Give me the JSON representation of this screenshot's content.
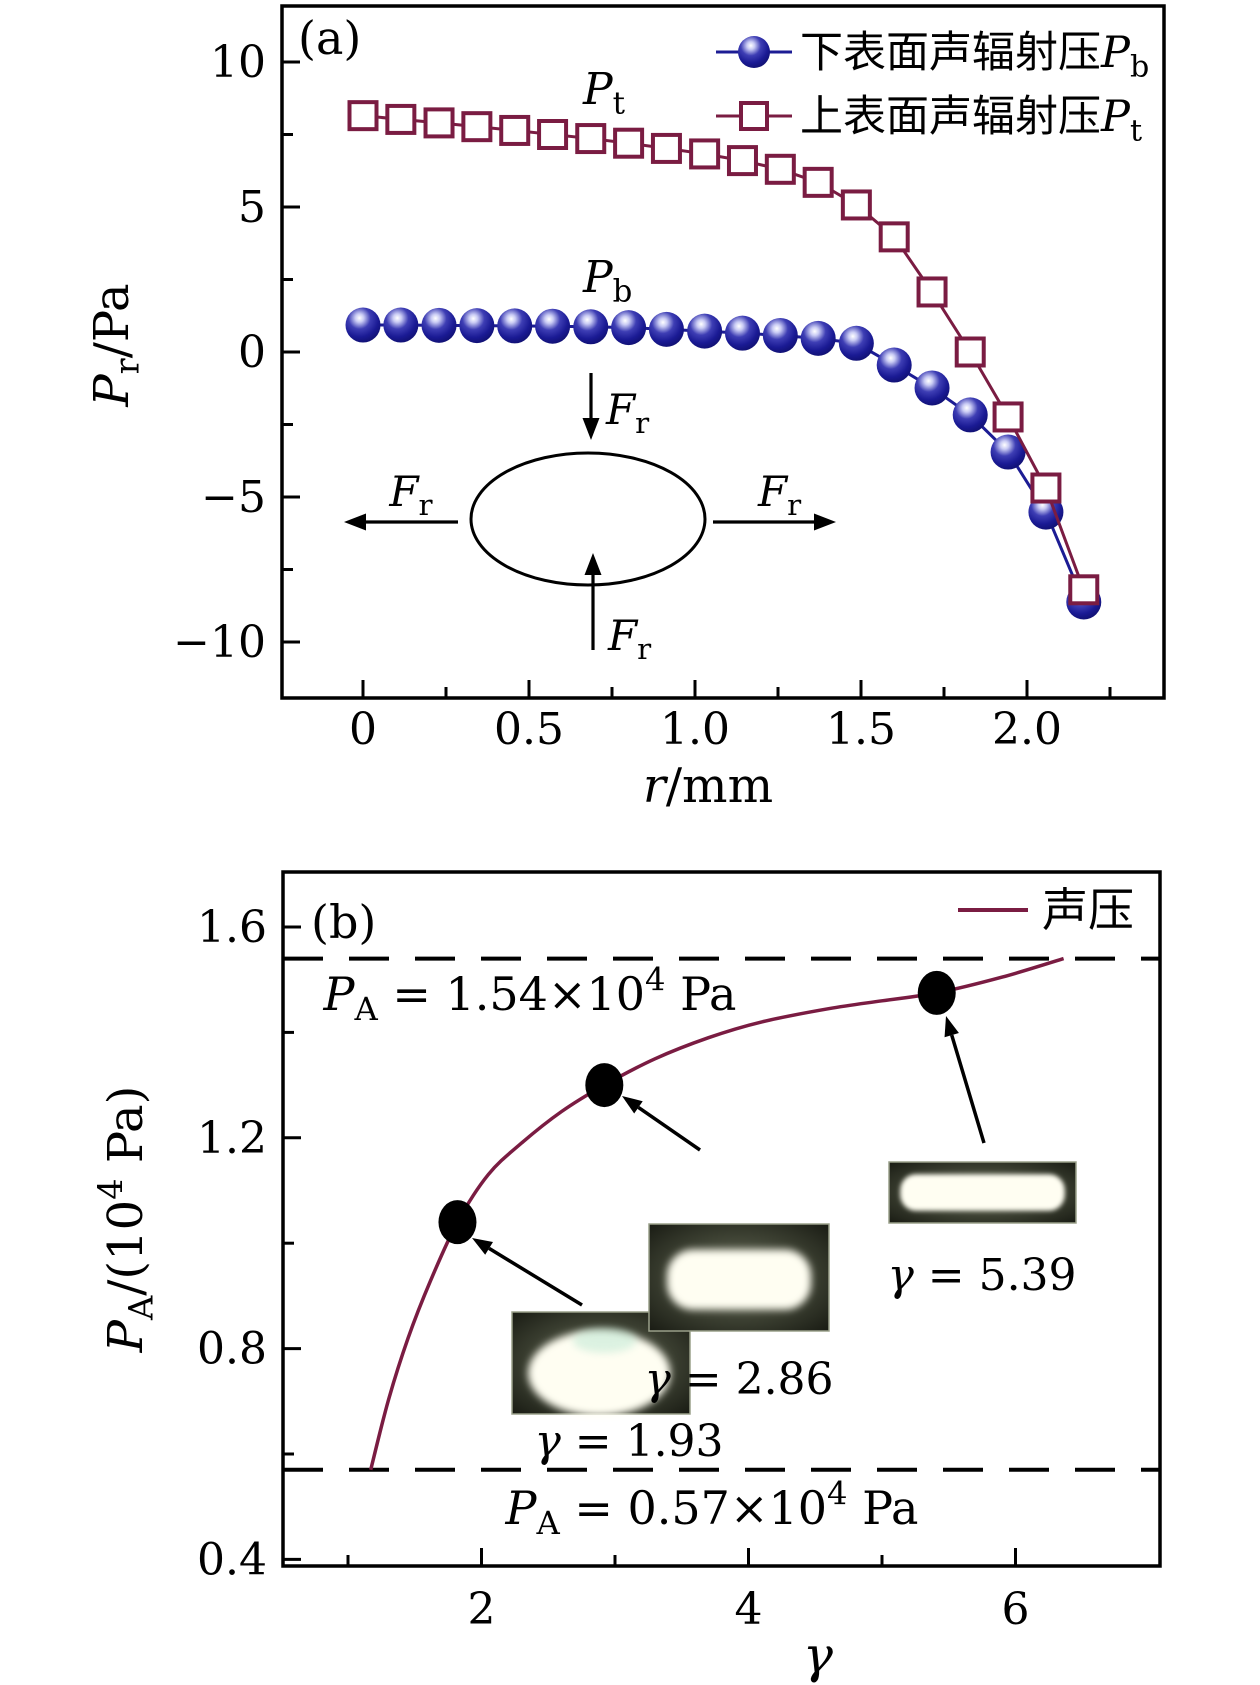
{
  "figure": {
    "panel_a": {
      "tag": "(a)",
      "x_axis_title": [
        {
          "t": "r",
          "k": "i"
        },
        {
          "t": "/mm",
          "k": "n"
        }
      ],
      "y_axis_title": [
        {
          "t": "P",
          "k": "i"
        },
        {
          "t": "r",
          "k": "sub"
        },
        {
          "t": "/Pa",
          "k": "n"
        }
      ],
      "x_tick_labels": [
        "0",
        "0.5",
        "1.0",
        "1.5",
        "2.0"
      ],
      "y_tick_labels": [
        "10",
        "5",
        "0",
        "−5",
        "−10"
      ],
      "legend": [
        {
          "parts": [
            {
              "t": "下表面声辐射压",
              "k": "n"
            },
            {
              "t": "P",
              "k": "i"
            },
            {
              "t": "b",
              "k": "sub"
            }
          ],
          "marker": "sphere"
        },
        {
          "parts": [
            {
              "t": "上表面声辐射压",
              "k": "n"
            },
            {
              "t": "P",
              "k": "i"
            },
            {
              "t": "t",
              "k": "sub"
            }
          ],
          "marker": "open-square"
        }
      ],
      "series_label_pt": [
        {
          "t": "P",
          "k": "i"
        },
        {
          "t": "t",
          "k": "sub"
        }
      ],
      "series_label_pb": [
        {
          "t": "P",
          "k": "i"
        },
        {
          "t": "b",
          "k": "sub"
        }
      ],
      "force_label": [
        {
          "t": "F",
          "k": "i"
        },
        {
          "t": "r",
          "k": "sub"
        }
      ]
    },
    "panel_b": {
      "tag": "(b)",
      "x_axis_title": [
        {
          "t": "γ",
          "k": "i"
        }
      ],
      "y_axis_title": [
        {
          "t": "P",
          "k": "i"
        },
        {
          "t": "A",
          "k": "sub"
        },
        {
          "t": "/(10",
          "k": "n"
        },
        {
          "t": "4",
          "k": "sup"
        },
        {
          "t": " Pa)",
          "k": "n"
        }
      ],
      "x_tick_labels": [
        "2",
        "4",
        "6"
      ],
      "y_tick_labels": [
        "1.6",
        "1.2",
        "0.8",
        "0.4"
      ],
      "legend": [
        {
          "parts": [
            {
              "t": "声压",
              "k": "n"
            }
          ],
          "marker": "line"
        }
      ],
      "upper_line_label": [
        {
          "t": "P",
          "k": "i"
        },
        {
          "t": "A",
          "k": "sub"
        },
        {
          "t": " = 1.54×10",
          "k": "n"
        },
        {
          "t": "4",
          "k": "sup"
        },
        {
          "t": " Pa",
          "k": "n"
        }
      ],
      "lower_line_label": [
        {
          "t": "P",
          "k": "i"
        },
        {
          "t": "A",
          "k": "sub"
        },
        {
          "t": " = 0.57×10",
          "k": "n"
        },
        {
          "t": "4",
          "k": "sup"
        },
        {
          "t": " Pa",
          "k": "n"
        }
      ],
      "point_labels": [
        [
          {
            "t": "γ",
            "k": "i"
          },
          {
            "t": " = 1.93",
            "k": "n"
          }
        ],
        [
          {
            "t": "γ",
            "k": "i"
          },
          {
            "t": " = 2.86",
            "k": "n"
          }
        ],
        [
          {
            "t": "γ",
            "k": "i"
          },
          {
            "t": " = 5.39",
            "k": "n"
          }
        ]
      ]
    },
    "colors": {
      "navy": "#1c1c94",
      "maroon": "#7a1c42",
      "black": "#000000",
      "photo_bg_dark": "#14160f",
      "photo_bg_mid": "#3a3e30",
      "photo_bg_light": "#6a705c",
      "blob_white": "#fffef2"
    }
  },
  "chart_data": [
    {
      "panel": "a",
      "type": "line",
      "title": "",
      "xlabel": "r/mm",
      "ylabel": "P_r/Pa",
      "xlim": [
        -0.26,
        2.41
      ],
      "ylim": [
        -11.9,
        11.9
      ],
      "x_ticks": [
        0,
        0.5,
        1.0,
        1.5,
        2.0
      ],
      "x_minor_ticks": [
        0.25,
        0.75,
        1.25,
        1.75,
        2.25
      ],
      "y_ticks": [
        10,
        5,
        0,
        -5,
        -10
      ],
      "y_minor_ticks": [
        7.5,
        2.5,
        -2.5,
        -7.5
      ],
      "legend_position": "top-right",
      "grid": false,
      "x": [
        0,
        0.114,
        0.229,
        0.343,
        0.457,
        0.571,
        0.686,
        0.8,
        0.914,
        1.029,
        1.143,
        1.257,
        1.371,
        1.486,
        1.6,
        1.714,
        1.829,
        1.943,
        2.057,
        2.171
      ],
      "series": [
        {
          "name": "下表面声辐射压P_b",
          "marker": "sphere",
          "color": "#1c1c94",
          "values": [
            0.93,
            0.93,
            0.92,
            0.91,
            0.9,
            0.89,
            0.87,
            0.84,
            0.78,
            0.72,
            0.65,
            0.57,
            0.47,
            0.3,
            -0.45,
            -1.24,
            -2.17,
            -3.45,
            -5.52,
            -8.62
          ]
        },
        {
          "name": "上表面声辐射压P_t",
          "marker": "open-square",
          "color": "#7a1c42",
          "values": [
            8.15,
            8.02,
            7.9,
            7.77,
            7.64,
            7.5,
            7.36,
            7.2,
            7.02,
            6.83,
            6.6,
            6.3,
            5.85,
            5.07,
            3.97,
            2.07,
            0.0,
            -2.24,
            -4.69,
            -8.2
          ]
        }
      ]
    },
    {
      "panel": "b",
      "type": "line",
      "title": "",
      "xlabel": "γ",
      "ylabel": "P_A/(10^4 Pa)",
      "xlim": [
        0.51,
        7.08
      ],
      "ylim": [
        0.39,
        1.7
      ],
      "x_ticks": [
        2,
        4,
        6
      ],
      "x_minor_ticks": [
        1,
        3,
        5
      ],
      "y_ticks": [
        1.6,
        1.2,
        0.8,
        0.4
      ],
      "y_minor_ticks": [
        1.4,
        1.0,
        0.6
      ],
      "legend_position": "top-right",
      "grid": false,
      "series": [
        {
          "name": "声压",
          "marker": "none",
          "color": "#7a1c42",
          "x": [
            1.17,
            1.3,
            1.45,
            1.62,
            1.82,
            2.05,
            2.3,
            2.6,
            2.92,
            3.3,
            3.7,
            4.1,
            4.6,
            5.0,
            5.41,
            5.9,
            6.36
          ],
          "y": [
            0.57,
            0.7,
            0.82,
            0.93,
            1.04,
            1.13,
            1.19,
            1.25,
            1.3,
            1.35,
            1.39,
            1.42,
            1.445,
            1.46,
            1.475,
            1.505,
            1.54
          ]
        }
      ],
      "dashed_hlines": [
        1.54,
        0.57
      ],
      "marked_points": [
        {
          "x": 1.82,
          "y": 1.04,
          "gamma_label": "γ = 1.93"
        },
        {
          "x": 2.92,
          "y": 1.3,
          "gamma_label": "γ = 2.86"
        },
        {
          "x": 5.41,
          "y": 1.475,
          "gamma_label": "γ = 5.39"
        }
      ]
    }
  ]
}
